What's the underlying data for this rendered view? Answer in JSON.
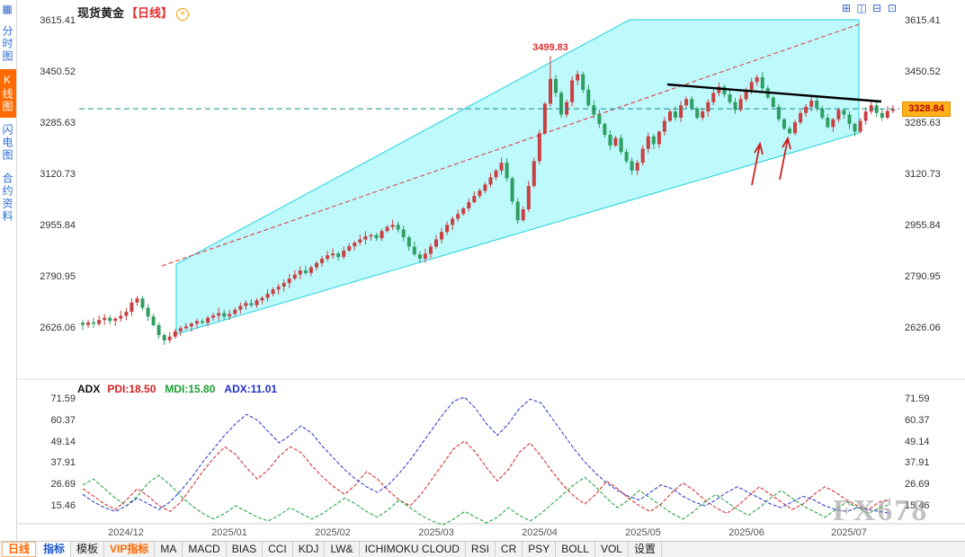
{
  "header": {
    "title": "现货黄金",
    "timeframe_label": "【日线】",
    "zoom_icon": "+"
  },
  "sidebar": {
    "tabs": [
      {
        "label": "分时图",
        "selected": false
      },
      {
        "label": "K线图",
        "selected": true
      },
      {
        "label": "闪电图",
        "selected": false
      },
      {
        "label": "合约资料",
        "selected": false
      }
    ]
  },
  "layout_icons": [
    {
      "name": "split-4-icon",
      "glyph": "⊞"
    },
    {
      "name": "split-2v-icon",
      "glyph": "◫"
    },
    {
      "name": "split-2h-icon",
      "glyph": "⊟"
    },
    {
      "name": "fullscreen-icon",
      "glyph": "⊡"
    }
  ],
  "corner_icon_glyph": "▦",
  "star_icon_glyph": "✳",
  "price_axis": {
    "ticks": [
      "3615.41",
      "3450.52",
      "3285.63",
      "3120.73",
      "2955.84",
      "2790.95",
      "2626.06"
    ]
  },
  "current_price": "3328.84",
  "x_axis": {
    "labels": [
      "2024/12",
      "2025/01",
      "2025/02",
      "2025/03",
      "2025/04",
      "2025/05",
      "2025/06",
      "2025/07"
    ]
  },
  "indicator_header": {
    "name": "ADX",
    "values": [
      {
        "label": "PDI:18.50",
        "color": "#d42020"
      },
      {
        "label": "MDI:15.80",
        "color": "#1a9e33"
      },
      {
        "label": "ADX:11.01",
        "color": "#2233cc"
      }
    ]
  },
  "indicator_axis": {
    "ticks": [
      "71.59",
      "60.37",
      "49.14",
      "37.91",
      "26.69",
      "15.46"
    ]
  },
  "toolbar": {
    "items": [
      {
        "label": "日线",
        "style": "period"
      },
      {
        "label": "指标",
        "style": "active"
      },
      {
        "label": "模板",
        "style": ""
      },
      {
        "label": "VIP指标",
        "style": "vip"
      },
      {
        "label": "MA",
        "style": ""
      },
      {
        "label": "MACD",
        "style": ""
      },
      {
        "label": "BIAS",
        "style": ""
      },
      {
        "label": "CCI",
        "style": ""
      },
      {
        "label": "KDJ",
        "style": ""
      },
      {
        "label": "LW&",
        "style": ""
      },
      {
        "label": "ICHIMOKU CLOUD",
        "style": ""
      },
      {
        "label": "RSI",
        "style": ""
      },
      {
        "label": "CR",
        "style": ""
      },
      {
        "label": "PSY",
        "style": ""
      },
      {
        "label": "BOLL",
        "style": ""
      },
      {
        "label": "VOL",
        "style": ""
      },
      {
        "label": "设置",
        "style": ""
      }
    ]
  },
  "watermark": "FX678",
  "colors": {
    "up": "#c94042",
    "down": "#2e9e62",
    "channel_fill": "#7df3fa",
    "channel_edge": "#1fd2de",
    "trend_dashed": "#e03030",
    "resistance_line": "#000000",
    "arrow": "#cc2020",
    "price_line": "#1d8f8f"
  },
  "chart_data": [
    {
      "type": "candlestick",
      "title": "现货黄金 日线 (Spot Gold Daily)",
      "x_labels": [
        "2024/12",
        "2025/01",
        "2025/02",
        "2025/03",
        "2025/04",
        "2025/05",
        "2025/06",
        "2025/07"
      ],
      "month_start_indices": [
        0,
        19,
        38,
        57,
        76,
        95,
        114,
        133
      ],
      "y_ticks": [
        3615.41,
        3450.52,
        3285.63,
        3120.73,
        2955.84,
        2790.95,
        2626.06
      ],
      "ylim": [
        2583,
        3615.41
      ],
      "closes": [
        2633,
        2641,
        2636,
        2649,
        2656,
        2646,
        2653,
        2662,
        2675,
        2705,
        2718,
        2688,
        2660,
        2632,
        2600,
        2583,
        2595,
        2612,
        2622,
        2628,
        2637,
        2645,
        2640,
        2656,
        2663,
        2671,
        2660,
        2668,
        2682,
        2694,
        2703,
        2696,
        2712,
        2720,
        2733,
        2747,
        2756,
        2768,
        2782,
        2795,
        2808,
        2800,
        2818,
        2832,
        2846,
        2857,
        2863,
        2852,
        2872,
        2886,
        2898,
        2908,
        2918,
        2922,
        2912,
        2935,
        2948,
        2955,
        2940,
        2915,
        2885,
        2860,
        2846,
        2862,
        2885,
        2908,
        2932,
        2955,
        2975,
        2990,
        3008,
        3028,
        3048,
        3065,
        3085,
        3108,
        3130,
        3155,
        3105,
        3030,
        2970,
        3005,
        3080,
        3160,
        3250,
        3345,
        3425,
        3380,
        3310,
        3350,
        3420,
        3440,
        3390,
        3340,
        3310,
        3280,
        3245,
        3210,
        3235,
        3190,
        3160,
        3130,
        3155,
        3200,
        3240,
        3215,
        3255,
        3290,
        3320,
        3300,
        3340,
        3360,
        3330,
        3300,
        3320,
        3350,
        3380,
        3400,
        3375,
        3350,
        3325,
        3360,
        3390,
        3415,
        3430,
        3395,
        3365,
        3335,
        3295,
        3265,
        3250,
        3285,
        3315,
        3335,
        3355,
        3330,
        3300,
        3270,
        3295,
        3325,
        3310,
        3280,
        3255,
        3290,
        3320,
        3340,
        3315,
        3300,
        3322,
        3328.84
      ],
      "peak": {
        "index": 86,
        "high": 3499.83,
        "label": "3499.83"
      },
      "last_close": 3328.84,
      "annotations": [
        "cyan ascending channel overlay",
        "red dashed trendline",
        "black descending resistance line",
        "two red up arrows"
      ]
    },
    {
      "type": "line",
      "title": "ADX (DMI) indicator",
      "y_ticks": [
        71.59,
        60.37,
        49.14,
        37.91,
        26.69,
        15.46
      ],
      "legend_position": "top-left",
      "series": [
        {
          "name": "PDI",
          "current": 18.5,
          "color": "#d42020",
          "values": [
            24,
            20,
            16,
            13,
            18,
            24,
            20,
            15,
            12,
            17,
            25,
            33,
            40,
            46,
            42,
            35,
            29,
            34,
            41,
            46,
            43,
            36,
            30,
            25,
            21,
            26,
            33,
            29,
            23,
            18,
            15,
            21,
            29,
            37,
            45,
            49,
            43,
            35,
            28,
            34,
            43,
            48,
            41,
            33,
            26,
            20,
            16,
            21,
            28,
            24,
            19,
            15,
            12,
            16,
            22,
            27,
            23,
            18,
            14,
            11,
            15,
            20,
            25,
            21,
            17,
            13,
            16,
            21,
            25,
            22,
            18,
            15,
            13,
            17,
            18.5
          ]
        },
        {
          "name": "MDI",
          "current": 15.8,
          "color": "#1a9e33",
          "values": [
            26,
            29,
            24,
            19,
            15,
            20,
            27,
            31,
            26,
            20,
            15,
            11,
            8,
            11,
            15,
            12,
            9,
            7,
            10,
            14,
            11,
            8,
            11,
            15,
            19,
            16,
            12,
            9,
            13,
            18,
            14,
            10,
            7,
            5,
            8,
            12,
            9,
            6,
            9,
            14,
            10,
            7,
            11,
            16,
            21,
            26,
            30,
            25,
            19,
            14,
            18,
            23,
            19,
            15,
            11,
            8,
            12,
            17,
            21,
            17,
            13,
            10,
            14,
            19,
            23,
            19,
            15,
            12,
            9,
            13,
            17,
            14,
            11,
            14,
            15.8
          ]
        },
        {
          "name": "ADX",
          "current": 11.01,
          "color": "#2233cc",
          "values": [
            21,
            17,
            14,
            12,
            15,
            19,
            16,
            13,
            17,
            23,
            30,
            38,
            45,
            52,
            58,
            63,
            60,
            54,
            48,
            52,
            57,
            53,
            46,
            40,
            34,
            29,
            25,
            22,
            26,
            32,
            39,
            47,
            55,
            63,
            70,
            72,
            66,
            58,
            52,
            58,
            66,
            71,
            69,
            61,
            53,
            45,
            38,
            32,
            27,
            23,
            20,
            18,
            22,
            26,
            24,
            20,
            17,
            15,
            18,
            22,
            25,
            22,
            19,
            16,
            14,
            17,
            20,
            18,
            15,
            13,
            12,
            14,
            13,
            12,
            11
          ]
        }
      ]
    }
  ]
}
